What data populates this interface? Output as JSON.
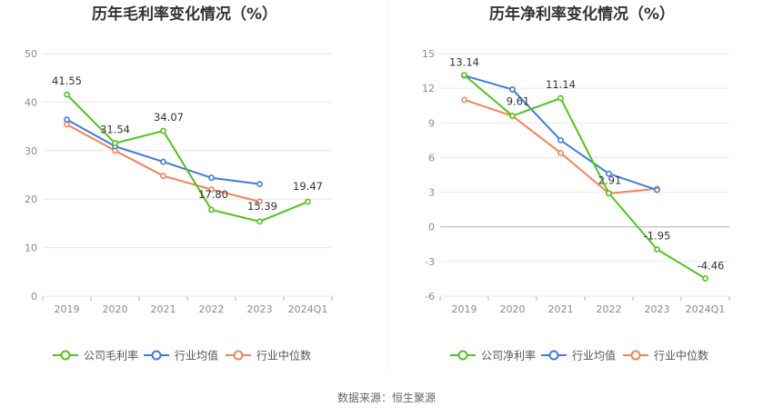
{
  "source_label": "数据来源：恒生聚源",
  "colors": {
    "company": "#52c41a",
    "industry_avg": "#3f7bde",
    "industry_median": "#f0845a",
    "grid": "#e6e6ee",
    "axis": "#b0b0b0"
  },
  "chart_data": [
    {
      "type": "line",
      "title": "历年毛利率变化情况（%）",
      "categories": [
        "2019",
        "2020",
        "2021",
        "2022",
        "2023",
        "2024Q1"
      ],
      "ylim": [
        0,
        50
      ],
      "yticks": [
        0,
        10,
        20,
        30,
        40,
        50
      ],
      "legend_position": "bottom",
      "grid": true,
      "series": [
        {
          "name": "公司毛利率",
          "role": "company",
          "values": [
            41.55,
            31.54,
            34.07,
            17.8,
            15.39,
            19.47
          ],
          "labels": [
            "41.55",
            "31.54",
            "34.07",
            "17.80",
            "15.39",
            "19.47"
          ]
        },
        {
          "name": "行业均值",
          "role": "industry_avg",
          "values": [
            36.4,
            30.9,
            27.7,
            24.4,
            23.1,
            null
          ]
        },
        {
          "name": "行业中位数",
          "role": "industry_median",
          "values": [
            35.4,
            30.0,
            24.8,
            22.0,
            19.5,
            null
          ]
        }
      ]
    },
    {
      "type": "line",
      "title": "历年净利率变化情况（%）",
      "categories": [
        "2019",
        "2020",
        "2021",
        "2022",
        "2023",
        "2024Q1"
      ],
      "ylim": [
        -6,
        15
      ],
      "yticks": [
        -6,
        -3,
        0,
        3,
        6,
        9,
        12,
        15
      ],
      "legend_position": "bottom",
      "grid": true,
      "series": [
        {
          "name": "公司净利率",
          "role": "company",
          "values": [
            13.14,
            9.61,
            11.14,
            2.91,
            -1.95,
            -4.46
          ],
          "labels": [
            "13.14",
            "9.61",
            "11.14",
            "2.91",
            "-1.95",
            "-4.46"
          ]
        },
        {
          "name": "行业均值",
          "role": "industry_avg",
          "values": [
            13.1,
            11.9,
            7.5,
            4.6,
            3.2,
            null
          ]
        },
        {
          "name": "行业中位数",
          "role": "industry_median",
          "values": [
            11.0,
            9.6,
            6.4,
            2.9,
            3.3,
            null
          ]
        }
      ]
    }
  ]
}
